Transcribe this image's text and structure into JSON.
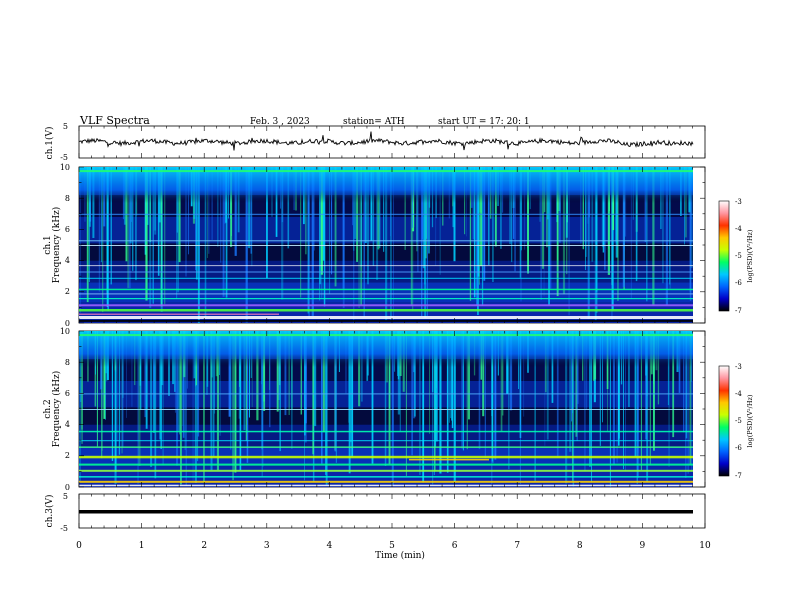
{
  "header": {
    "title": "VLF  Spectra",
    "date": "Feb. 3  , 2023",
    "station": "station= ATH",
    "start": "start  UT  =    17: 20: 1"
  },
  "axes": {
    "x_label": "Time  (min)",
    "x_ticks": [
      "0",
      "1",
      "2",
      "3",
      "4",
      "5",
      "6",
      "7",
      "8",
      "9",
      "10"
    ],
    "ch1_label": "ch.1(V)",
    "ch3_label": "ch.3(V)",
    "wave_ticks": [
      "5",
      "-5"
    ],
    "spec1_label_a": "ch.1",
    "spec1_label_b": "Frequency (kHz)",
    "spec2_label_a": "ch.2",
    "spec2_label_b": "Frequency (kHz)",
    "freq_ticks": [
      "10",
      "8",
      "6",
      "4",
      "2",
      "0"
    ]
  },
  "colorbar": {
    "ticks": [
      "-3",
      "-4",
      "-5",
      "-6",
      "-7"
    ],
    "label": "log(PSD)(V²/Hz)",
    "colors": [
      "#000000",
      "#0000c8",
      "#0064ff",
      "#00c8ff",
      "#00ff64",
      "#c8ff00",
      "#ffc800",
      "#ff3200",
      "#ff96a0",
      "#ffffff"
    ]
  },
  "chart_data": [
    {
      "type": "line",
      "name": "ch1 waveform",
      "x_range_min": [
        0,
        9.8
      ],
      "ylim": [
        -5,
        5
      ],
      "approx_level": 0,
      "description_level": "noisy trace around 0 V"
    },
    {
      "type": "heatmap",
      "name": "ch1 spectrogram",
      "x_range_min": [
        0,
        9.8
      ],
      "freq_range_khz": [
        0,
        10
      ],
      "value_range_log_psd": [
        -7,
        -3
      ]
    },
    {
      "type": "heatmap",
      "name": "ch2 spectrogram",
      "x_range_min": [
        0,
        9.8
      ],
      "freq_range_khz": [
        0,
        10
      ],
      "value_range_log_psd": [
        -7,
        -3
      ]
    },
    {
      "type": "line",
      "name": "ch3 waveform",
      "x_range_min": [
        0,
        9.8
      ],
      "ylim": [
        -5,
        5
      ],
      "approx_level": -0.5
    }
  ]
}
